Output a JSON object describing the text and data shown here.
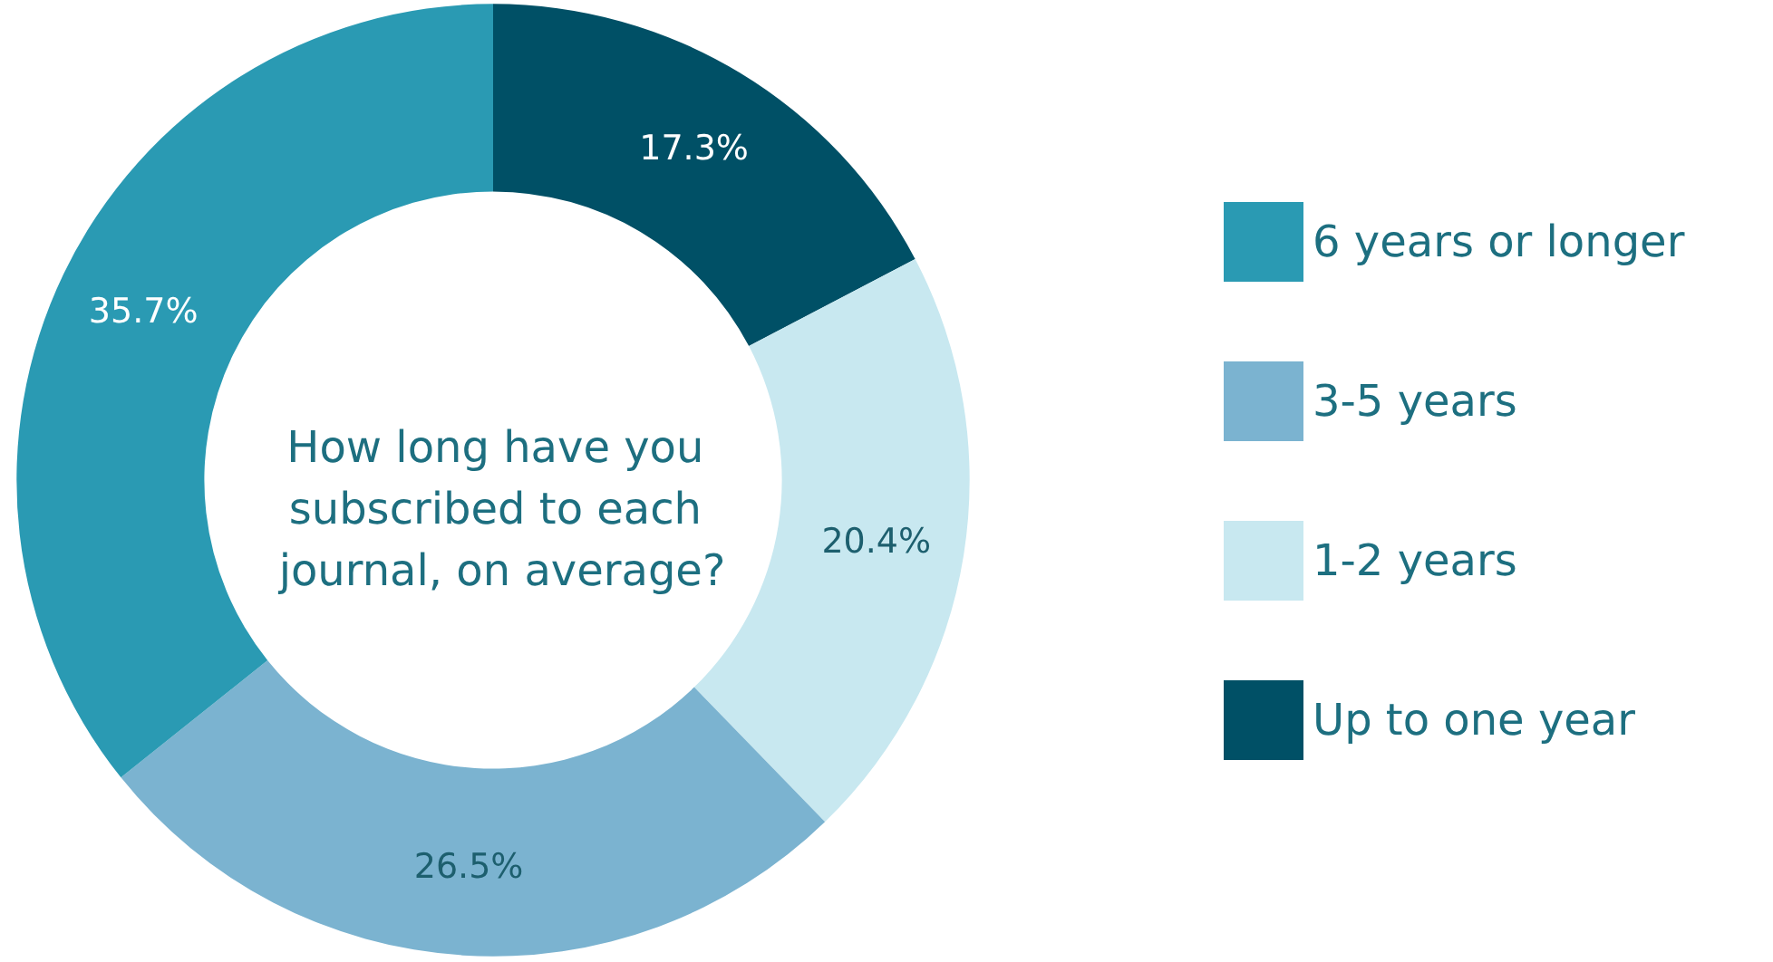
{
  "chart_data": {
    "type": "donut",
    "title": "How long have you subscribed to each journal, on average?",
    "categories": [
      "Up to one year",
      "1-2 years",
      "3-5 years",
      "6 years or longer"
    ],
    "values": [
      17.3,
      20.4,
      26.5,
      35.7
    ],
    "value_labels": [
      "17.3%",
      "20.4%",
      "26.5%",
      "35.7%"
    ],
    "colors": [
      "#005066",
      "#c8e8f0",
      "#7bb3d0",
      "#2a9ab3"
    ],
    "legend": "right"
  }
}
